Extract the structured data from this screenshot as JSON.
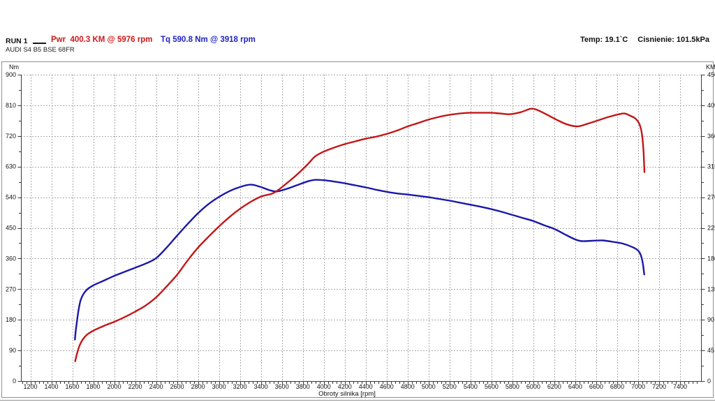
{
  "header": {
    "run_label": "RUN 1",
    "power_label": "Pwr  400.3 KM @ 5976 rpm",
    "torque_label": "Tq 590.8 Nm @ 3918 rpm",
    "temp_label": "Temp: 19.1`C",
    "pressure_label": "Cisnienie: 101.5kPa",
    "vehicle_label": "AUDI S4 B5 BSE 68FR"
  },
  "colors": {
    "torque_curve": "#1a18a8",
    "power_curve": "#c31616",
    "torque_text": "#1f24c0",
    "power_text": "#d01818",
    "grid": "#a9a9a9",
    "axis": "#3a3a3a",
    "panel_border": "#8f8f8f"
  },
  "chart_data": {
    "type": "line",
    "title": "",
    "xlabel": "Obroty silnika [rpm]",
    "legend_position": "top",
    "grid": true,
    "x_axis": {
      "min": 1110,
      "max": 7600,
      "tick_start": 1200,
      "tick_end": 7400,
      "tick_step": 200,
      "minor_step": 40
    },
    "y_left": {
      "unit": "Nm",
      "min": 0,
      "max": 900,
      "tick_step": 90,
      "minor_step": 45
    },
    "y_right": {
      "unit": "KM",
      "min": 0,
      "max": 450,
      "tick_step": 45,
      "minor_step": 22.5
    },
    "series": [
      {
        "name": "torque",
        "label": "Tq 590.8 Nm @ 3918 rpm",
        "axis": "left",
        "units": "Nm",
        "peak": {
          "value": 590.8,
          "rpm": 3918
        },
        "points": [
          [
            1625,
            122
          ],
          [
            1633,
            148
          ],
          [
            1643,
            172
          ],
          [
            1658,
            205
          ],
          [
            1678,
            236
          ],
          [
            1705,
            255
          ],
          [
            1745,
            270
          ],
          [
            1800,
            281
          ],
          [
            1900,
            295
          ],
          [
            2000,
            309
          ],
          [
            2100,
            321
          ],
          [
            2200,
            333
          ],
          [
            2300,
            345
          ],
          [
            2400,
            361
          ],
          [
            2500,
            392
          ],
          [
            2600,
            427
          ],
          [
            2700,
            461
          ],
          [
            2800,
            493
          ],
          [
            2900,
            520
          ],
          [
            3000,
            541
          ],
          [
            3100,
            558
          ],
          [
            3200,
            570
          ],
          [
            3300,
            577
          ],
          [
            3390,
            571
          ],
          [
            3480,
            561
          ],
          [
            3550,
            557
          ],
          [
            3650,
            565
          ],
          [
            3750,
            576
          ],
          [
            3850,
            587
          ],
          [
            3918,
            591
          ],
          [
            4000,
            590
          ],
          [
            4100,
            586
          ],
          [
            4200,
            581
          ],
          [
            4300,
            575
          ],
          [
            4400,
            569
          ],
          [
            4500,
            562
          ],
          [
            4600,
            556
          ],
          [
            4700,
            551
          ],
          [
            4800,
            548
          ],
          [
            4900,
            544
          ],
          [
            5000,
            540
          ],
          [
            5100,
            535
          ],
          [
            5200,
            530
          ],
          [
            5300,
            524
          ],
          [
            5400,
            518
          ],
          [
            5500,
            512
          ],
          [
            5600,
            505
          ],
          [
            5700,
            497
          ],
          [
            5800,
            488
          ],
          [
            5900,
            479
          ],
          [
            6000,
            470
          ],
          [
            6100,
            458
          ],
          [
            6200,
            447
          ],
          [
            6300,
            431
          ],
          [
            6400,
            416
          ],
          [
            6460,
            411
          ],
          [
            6560,
            412
          ],
          [
            6660,
            413
          ],
          [
            6760,
            409
          ],
          [
            6850,
            404
          ],
          [
            6950,
            393
          ],
          [
            7000,
            383
          ],
          [
            7025,
            370
          ],
          [
            7045,
            345
          ],
          [
            7058,
            313
          ]
        ]
      },
      {
        "name": "power",
        "label": "Pwr 400.3 KM @ 5976 rpm",
        "axis": "right",
        "units": "KM",
        "peak": {
          "value": 400.3,
          "rpm": 5976
        },
        "points": [
          [
            1628,
            29
          ],
          [
            1638,
            36
          ],
          [
            1652,
            44
          ],
          [
            1672,
            53
          ],
          [
            1700,
            61
          ],
          [
            1740,
            68
          ],
          [
            1800,
            74
          ],
          [
            1900,
            81
          ],
          [
            2000,
            87
          ],
          [
            2100,
            94
          ],
          [
            2200,
            102
          ],
          [
            2300,
            111
          ],
          [
            2400,
            123
          ],
          [
            2500,
            139
          ],
          [
            2600,
            156
          ],
          [
            2700,
            177
          ],
          [
            2800,
            196
          ],
          [
            2900,
            212
          ],
          [
            3000,
            227
          ],
          [
            3100,
            241
          ],
          [
            3200,
            253
          ],
          [
            3300,
            263
          ],
          [
            3400,
            271
          ],
          [
            3500,
            275
          ],
          [
            3560,
            280
          ],
          [
            3650,
            291
          ],
          [
            3750,
            304
          ],
          [
            3850,
            319
          ],
          [
            3918,
            330
          ],
          [
            4000,
            337
          ],
          [
            4100,
            343
          ],
          [
            4200,
            348
          ],
          [
            4300,
            352
          ],
          [
            4400,
            356
          ],
          [
            4500,
            359
          ],
          [
            4600,
            363
          ],
          [
            4700,
            368
          ],
          [
            4800,
            374
          ],
          [
            4900,
            379
          ],
          [
            5000,
            384
          ],
          [
            5100,
            388
          ],
          [
            5200,
            391
          ],
          [
            5300,
            393
          ],
          [
            5400,
            394
          ],
          [
            5500,
            394
          ],
          [
            5600,
            394
          ],
          [
            5680,
            393
          ],
          [
            5780,
            392
          ],
          [
            5880,
            395
          ],
          [
            5976,
            400
          ],
          [
            6040,
            398
          ],
          [
            6120,
            392
          ],
          [
            6220,
            384
          ],
          [
            6320,
            377
          ],
          [
            6420,
            374
          ],
          [
            6520,
            378
          ],
          [
            6620,
            383
          ],
          [
            6720,
            388
          ],
          [
            6820,
            392
          ],
          [
            6870,
            393
          ],
          [
            6920,
            390
          ],
          [
            6970,
            386
          ],
          [
            7010,
            378
          ],
          [
            7035,
            364
          ],
          [
            7050,
            340
          ],
          [
            7060,
            307
          ]
        ]
      }
    ]
  }
}
